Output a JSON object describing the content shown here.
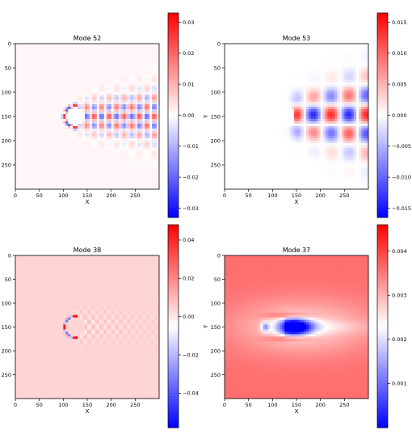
{
  "chart_data": [
    {
      "type": "heatmap",
      "title": "Mode 52",
      "xlabel": "X",
      "ylabel": "",
      "xlim": [
        0,
        300
      ],
      "ylim": [
        300,
        0
      ],
      "xticks": [
        0,
        50,
        100,
        150,
        200,
        250
      ],
      "yticks": [
        0,
        50,
        100,
        150,
        200,
        250
      ],
      "colormap": "bwr",
      "vlim": [
        -0.033,
        0.033
      ],
      "colorbar_ticks": [
        {
          "value": 0.03,
          "label": "0.03"
        },
        {
          "value": 0.02,
          "label": "0.02"
        },
        {
          "value": 0.01,
          "label": "0.01"
        },
        {
          "value": 0.0,
          "label": "0.00"
        },
        {
          "value": -0.01,
          "label": "−0.01"
        },
        {
          "value": -0.02,
          "label": "−0.02"
        },
        {
          "value": -0.03,
          "label": "−0.03"
        }
      ],
      "field_features": {
        "background": 0.001,
        "obstacle_center": [
          125,
          150
        ],
        "obstacle_radius": 22,
        "pattern": "fine ring at obstacle, alternating wake cells downstream",
        "wake_amplitude": 0.022
      }
    },
    {
      "type": "heatmap",
      "title": "Mode 53",
      "xlabel": "X",
      "ylabel": "Y",
      "xlim": [
        0,
        300
      ],
      "ylim": [
        300,
        0
      ],
      "xticks": [
        0,
        50,
        100,
        150,
        200,
        250
      ],
      "yticks": [
        0,
        50,
        100,
        150,
        200,
        250
      ],
      "colormap": "bwr",
      "vlim": [
        -0.0165,
        0.0165
      ],
      "colorbar_ticks": [
        {
          "value": 0.015,
          "label": "0.015"
        },
        {
          "value": 0.01,
          "label": "0.010"
        },
        {
          "value": 0.005,
          "label": "0.005"
        },
        {
          "value": 0.0,
          "label": "0.000"
        },
        {
          "value": -0.005,
          "label": "−0.005"
        },
        {
          "value": -0.01,
          "label": "−0.010"
        },
        {
          "value": -0.015,
          "label": "−0.015"
        }
      ],
      "field_features": {
        "background": 0.0,
        "obstacle_center": [
          125,
          150
        ],
        "obstacle_radius": 22,
        "pattern": "large alternating lobes in the wake",
        "wake_amplitude": 0.014
      }
    },
    {
      "type": "heatmap",
      "title": "Mode 38",
      "xlabel": "X",
      "ylabel": "",
      "xlim": [
        0,
        300
      ],
      "ylim": [
        300,
        0
      ],
      "xticks": [
        0,
        50,
        100,
        150,
        200,
        250
      ],
      "yticks": [
        0,
        50,
        100,
        150,
        200,
        250
      ],
      "colormap": "bwr",
      "vlim": [
        -0.058,
        0.048
      ],
      "colorbar_ticks": [
        {
          "value": 0.04,
          "label": "0.04"
        },
        {
          "value": 0.02,
          "label": "0.02"
        },
        {
          "value": 0.0,
          "label": "0.00"
        },
        {
          "value": -0.02,
          "label": "−0.02"
        },
        {
          "value": -0.04,
          "label": "−0.04"
        }
      ],
      "field_features": {
        "background": 0.004,
        "obstacle_center": [
          125,
          150
        ],
        "obstacle_radius": 22,
        "pattern": "thin ring at obstacle, faint fine-scale wake",
        "wake_amplitude": 0.01
      }
    },
    {
      "type": "heatmap",
      "title": "Mode 37",
      "xlabel": "X",
      "ylabel": "Y",
      "xlim": [
        0,
        300
      ],
      "ylim": [
        300,
        0
      ],
      "xticks": [
        0,
        50,
        100,
        150,
        200,
        250
      ],
      "yticks": [
        0,
        50,
        100,
        150,
        200,
        250
      ],
      "colormap": "bwr",
      "vlim": [
        0.0,
        0.0046
      ],
      "colorbar_ticks": [
        {
          "value": 0.004,
          "label": "0.004"
        },
        {
          "value": 0.003,
          "label": "0.003"
        },
        {
          "value": 0.002,
          "label": "0.002"
        },
        {
          "value": 0.001,
          "label": "0.001"
        }
      ],
      "field_features": {
        "background": 0.0036,
        "obstacle_center": [
          125,
          150
        ],
        "obstacle_radius": 22,
        "pattern": "smooth field, low-value wake bubble behind obstacle, high-value shear layers above and below",
        "wake_amplitude": 0.0022
      }
    }
  ]
}
